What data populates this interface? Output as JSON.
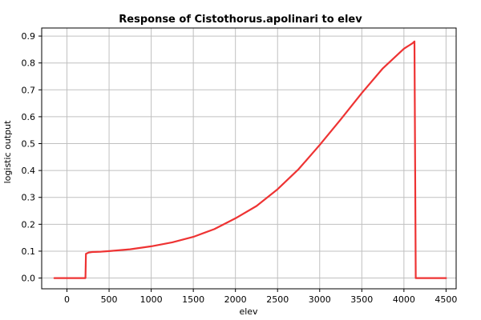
{
  "chart_data": {
    "type": "line",
    "title": "Response of Cistothorus.apolinari to elev",
    "xlabel": "elev",
    "ylabel": "logistic output",
    "xlim": [
      -300,
      4620
    ],
    "ylim": [
      -0.04,
      0.93
    ],
    "xticks": [
      0,
      500,
      1000,
      1500,
      2000,
      2500,
      3000,
      3500,
      4000,
      4500
    ],
    "yticks": [
      0.0,
      0.1,
      0.2,
      0.3,
      0.4,
      0.5,
      0.6,
      0.7,
      0.8,
      0.9
    ],
    "ytick_labels": [
      "0.0",
      "0.1",
      "0.2",
      "0.3",
      "0.4",
      "0.5",
      "0.6",
      "0.7",
      "0.8",
      "0.9"
    ],
    "grid": true,
    "colors": {
      "line": "#ee3333"
    },
    "series": [
      {
        "x": [
          -150,
          220,
          225,
          260,
          300,
          400,
          500,
          750,
          1000,
          1250,
          1500,
          1750,
          2000,
          2250,
          2500,
          2750,
          3000,
          3250,
          3500,
          3750,
          4000,
          4100,
          4125,
          4140,
          4500
        ],
        "y": [
          0.0,
          0.0,
          0.09,
          0.095,
          0.097,
          0.098,
          0.1,
          0.107,
          0.118,
          0.133,
          0.153,
          0.182,
          0.222,
          0.268,
          0.33,
          0.405,
          0.495,
          0.59,
          0.688,
          0.78,
          0.853,
          0.873,
          0.88,
          0.0,
          0.0
        ]
      }
    ]
  }
}
